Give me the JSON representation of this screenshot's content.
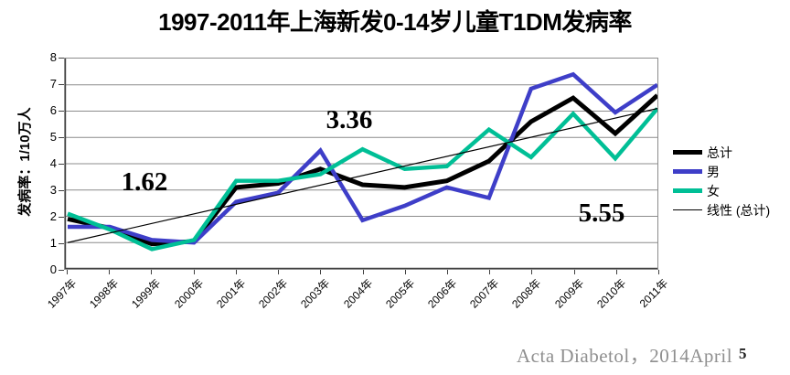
{
  "title": "1997-2011年上海新发0-14岁儿童T1DM发病率",
  "y_axis": {
    "label": "发病率：1/10万人",
    "ticks": [
      "0",
      "1",
      "2",
      "3",
      "4",
      "5",
      "6",
      "7",
      "8"
    ],
    "min": 0,
    "max": 8
  },
  "chart_data": {
    "type": "line",
    "x": [
      "1997年",
      "1998年",
      "1999年",
      "2000年",
      "2001年",
      "2002年",
      "2003年",
      "2004年",
      "2005年",
      "2006年",
      "2007年",
      "2008年",
      "2009年",
      "2010年",
      "2011年"
    ],
    "title": "1997-2011年上海新发0-14岁儿童T1DM发病率",
    "xlabel": "",
    "ylabel": "发病率：1/10万人",
    "ylim": [
      0,
      8
    ],
    "grid": true,
    "legend_position": "right",
    "series": [
      {
        "name": "总计",
        "color": "#000000",
        "width": 5,
        "values": [
          1.9,
          1.55,
          0.95,
          1.05,
          3.1,
          3.25,
          3.8,
          3.2,
          3.1,
          3.35,
          4.1,
          5.6,
          6.5,
          5.15,
          6.6
        ]
      },
      {
        "name": "男",
        "color": "#3e3ec8",
        "width": 4.5,
        "values": [
          1.6,
          1.6,
          1.1,
          1.0,
          2.55,
          2.9,
          4.5,
          1.85,
          2.4,
          3.1,
          2.7,
          6.85,
          7.4,
          5.95,
          7.0
        ]
      },
      {
        "name": "女",
        "color": "#00bf96",
        "width": 4.5,
        "values": [
          2.1,
          1.5,
          0.75,
          1.1,
          3.35,
          3.35,
          3.6,
          4.55,
          3.8,
          3.9,
          5.3,
          4.25,
          5.9,
          4.2,
          6.1
        ]
      },
      {
        "name": "线性 (总计)",
        "color": "#000000",
        "width": 1.2,
        "trend": true,
        "values": [
          1.0,
          6.1
        ]
      }
    ],
    "annotations": [
      {
        "text": "1.62"
      },
      {
        "text": "3.36"
      },
      {
        "text": "5.55"
      }
    ]
  },
  "legend": {
    "items": [
      {
        "label": "总计",
        "color": "#000000",
        "style": "thick"
      },
      {
        "label": "男",
        "color": "#3e3ec8",
        "style": "thick"
      },
      {
        "label": "女",
        "color": "#00bf96",
        "style": "thick"
      },
      {
        "label": "线性 (总计)",
        "color": "#000000",
        "style": "thin"
      }
    ]
  },
  "footer": {
    "citation": "Acta Diabetol，2014April",
    "page_number": "5"
  }
}
